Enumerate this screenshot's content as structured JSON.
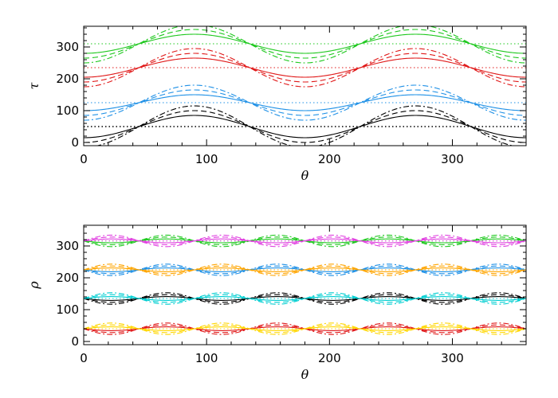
{
  "chart_data": [
    {
      "type": "line",
      "xlabel": "θ",
      "ylabel": "τ",
      "xlim": [
        0,
        360
      ],
      "ylim": [
        -10,
        365
      ],
      "xticks": [
        "0",
        "100",
        "200",
        "300"
      ],
      "yticks": [
        "0",
        "100",
        "200",
        "300"
      ],
      "grid": false,
      "series": [
        {
          "color": "#000000",
          "mean": 50,
          "amplitudes": [
            35,
            50,
            65
          ],
          "period": 180,
          "phase": 135
        },
        {
          "color": "#1E90E6",
          "mean": 125,
          "amplitudes": [
            25,
            40,
            55
          ],
          "period": 180,
          "phase": 135
        },
        {
          "color": "#E01818",
          "mean": 235,
          "amplitudes": [
            30,
            45,
            60
          ],
          "period": 180,
          "phase": 135
        },
        {
          "color": "#1EC81E",
          "mean": 310,
          "amplitudes": [
            30,
            45,
            60
          ],
          "period": 180,
          "phase": 135
        }
      ]
    },
    {
      "type": "line",
      "xlabel": "θ",
      "ylabel": "ρ",
      "xlim": [
        0,
        360
      ],
      "ylim": [
        -10,
        365
      ],
      "xticks": [
        "0",
        "100",
        "200",
        "300"
      ],
      "yticks": [
        "0",
        "100",
        "200",
        "300"
      ],
      "grid": false,
      "series": [
        {
          "color": "#1EC81E",
          "mean": 316,
          "amplitudes": [
            6,
            12,
            18
          ],
          "period": 90,
          "phase": 0
        },
        {
          "color": "#E040E0",
          "mean": 316,
          "amplitudes": [
            6,
            12,
            18
          ],
          "period": 90,
          "phase": 45
        },
        {
          "color": "#1E90E6",
          "mean": 225,
          "amplitudes": [
            6,
            12,
            18
          ],
          "period": 90,
          "phase": 0
        },
        {
          "color": "#FFA500",
          "mean": 225,
          "amplitudes": [
            6,
            12,
            18
          ],
          "period": 90,
          "phase": 45
        },
        {
          "color": "#000000",
          "mean": 135,
          "amplitudes": [
            6,
            12,
            18
          ],
          "period": 90,
          "phase": 0
        },
        {
          "color": "#00CED1",
          "mean": 135,
          "amplitudes": [
            6,
            12,
            18
          ],
          "period": 90,
          "phase": 45
        },
        {
          "color": "#E01818",
          "mean": 40,
          "amplitudes": [
            6,
            12,
            18
          ],
          "period": 90,
          "phase": 0
        },
        {
          "color": "#FFD700",
          "mean": 40,
          "amplitudes": [
            6,
            12,
            18
          ],
          "period": 90,
          "phase": 45
        }
      ]
    }
  ]
}
